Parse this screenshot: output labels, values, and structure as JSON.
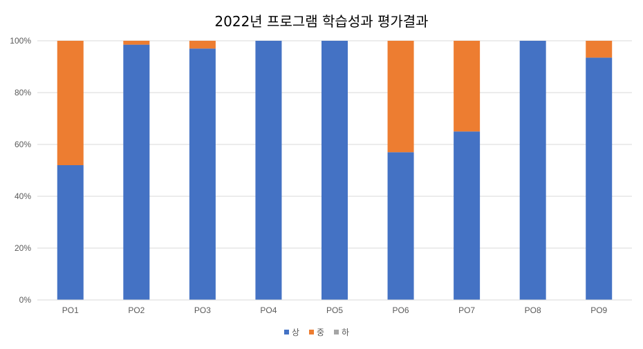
{
  "chart_data": {
    "type": "bar",
    "stacked": true,
    "percent": true,
    "title": "2022년 프로그램 학습성과 평가결과",
    "categories": [
      "PO1",
      "PO2",
      "PO3",
      "PO4",
      "PO5",
      "PO6",
      "PO7",
      "PO8",
      "PO9"
    ],
    "series": [
      {
        "name": "상",
        "color": "#4472c4",
        "values": [
          52,
          98.5,
          97,
          100,
          100,
          57,
          65,
          100,
          93.5
        ]
      },
      {
        "name": "중",
        "color": "#ed7d31",
        "values": [
          48,
          1.5,
          3,
          0,
          0,
          43,
          35,
          0,
          6.5
        ]
      },
      {
        "name": "하",
        "color": "#a5a5a5",
        "values": [
          0,
          0,
          0,
          0,
          0,
          0,
          0,
          0,
          0
        ]
      }
    ],
    "yticks": [
      "0%",
      "20%",
      "40%",
      "60%",
      "80%",
      "100%"
    ],
    "ylim": [
      0,
      100
    ],
    "grid": true,
    "legend": "bottom"
  }
}
